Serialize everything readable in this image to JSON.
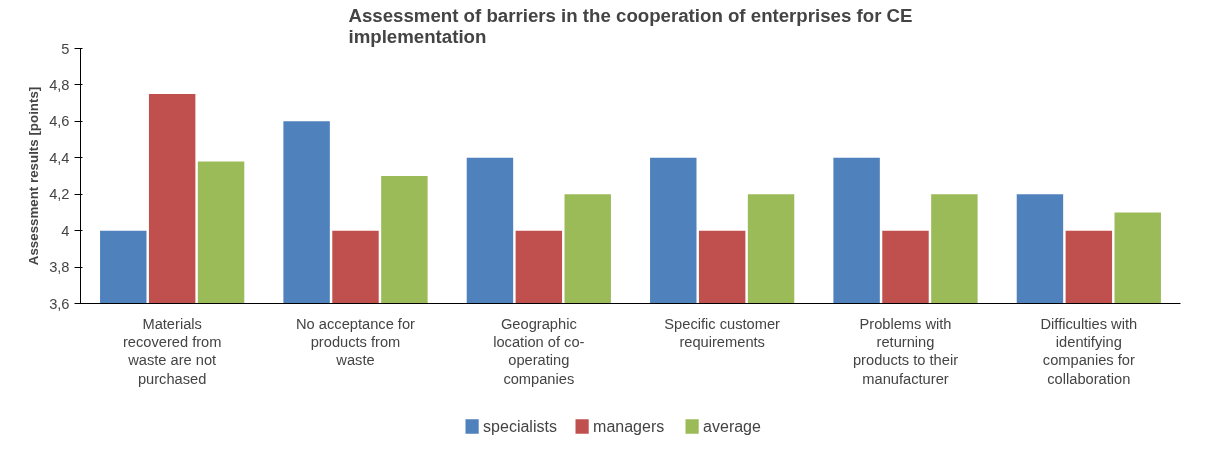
{
  "chart_data": {
    "type": "bar",
    "title": "Assessment of barriers in the cooperation of enterprises for CE implementation",
    "ylabel": "Assessment results [points]",
    "categories": [
      "Materials recovered from waste are not purchased",
      "No acceptance for products from waste",
      "Geographic location of co-operating companies",
      "Specific customer requirements",
      "Problems with returning products to their manufacturer",
      "Difficulties with identifying companies for collaboration"
    ],
    "series": [
      {
        "name": "specialists",
        "color": "#4f81bd",
        "values": [
          4.0,
          4.6,
          4.4,
          4.4,
          4.4,
          4.2
        ]
      },
      {
        "name": "managers",
        "color": "#c0504d",
        "values": [
          4.75,
          4.0,
          4.0,
          4.0,
          4.0,
          4.0
        ]
      },
      {
        "name": "average",
        "color": "#9bbb59",
        "values": [
          4.38,
          4.3,
          4.2,
          4.2,
          4.2,
          4.1
        ]
      }
    ],
    "ylim": [
      3.6,
      5
    ],
    "yticks": [
      {
        "value": 3.6,
        "label": "3,6"
      },
      {
        "value": 3.8,
        "label": "3,8"
      },
      4,
      {
        "value": 4.2,
        "label": "4,2"
      },
      {
        "value": 4.4,
        "label": "4,4"
      },
      {
        "value": 4.6,
        "label": "4,6"
      },
      {
        "value": 4.8,
        "label": "4,8"
      },
      5
    ],
    "grid": false,
    "legend": "bottom"
  }
}
